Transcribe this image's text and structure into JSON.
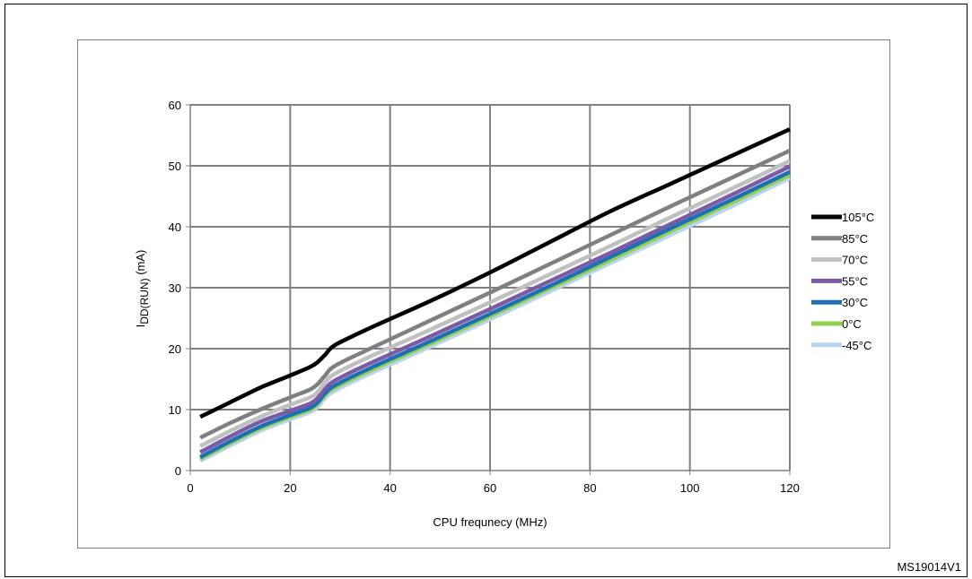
{
  "reference_id": "MS19014V1",
  "chart_data": {
    "type": "line",
    "title": "",
    "xlabel": "CPU frequnecy (MHz)",
    "ylabel_main": "I",
    "ylabel_sub": "DD(RUN)",
    "ylabel_unit": " (mA)",
    "xlim": [
      0,
      120
    ],
    "ylim": [
      0,
      60
    ],
    "xticks": [
      "0",
      "20",
      "40",
      "60",
      "80",
      "100",
      "120"
    ],
    "yticks": [
      "0",
      "10",
      "20",
      "30",
      "40",
      "50",
      "60"
    ],
    "grid": true,
    "legend_position": "right",
    "series": [
      {
        "name": "105°C",
        "color": "#000000",
        "x": [
          2,
          8,
          14,
          20,
          24,
          25.5,
          27,
          29,
          36,
          48,
          60,
          72,
          84,
          96,
          108,
          120
        ],
        "y": [
          8.8,
          11.2,
          13.6,
          15.6,
          17.0,
          17.8,
          19.0,
          20.6,
          23.4,
          27.8,
          32.5,
          37.5,
          42.5,
          47.0,
          51.5,
          56.0
        ]
      },
      {
        "name": "85°C",
        "color": "#808080",
        "x": [
          2,
          8,
          14,
          20,
          24,
          25.5,
          27,
          29,
          36,
          48,
          60,
          72,
          84,
          96,
          108,
          120
        ],
        "y": [
          5.4,
          7.8,
          10.0,
          12.0,
          13.3,
          14.2,
          15.6,
          17.2,
          20.0,
          24.6,
          29.2,
          33.9,
          38.6,
          43.3,
          47.9,
          52.5
        ]
      },
      {
        "name": "70°C",
        "color": "#c0c0c0",
        "x": [
          2,
          8,
          14,
          20,
          24,
          25.5,
          27,
          29,
          36,
          48,
          60,
          72,
          84,
          96,
          108,
          120
        ],
        "y": [
          4.0,
          6.5,
          8.8,
          10.8,
          12.0,
          12.9,
          14.5,
          15.9,
          18.7,
          23.1,
          27.6,
          32.2,
          36.8,
          41.5,
          46.1,
          50.8
        ]
      },
      {
        "name": "55°C",
        "color": "#7c5ba6",
        "x": [
          2,
          8,
          14,
          20,
          24,
          25.5,
          27,
          29,
          36,
          48,
          60,
          72,
          84,
          96,
          108,
          120
        ],
        "y": [
          3.0,
          5.6,
          8.0,
          9.8,
          11.0,
          11.9,
          13.4,
          14.8,
          17.6,
          22.0,
          26.5,
          31.1,
          35.7,
          40.4,
          45.1,
          49.9
        ]
      },
      {
        "name": "30°C",
        "color": "#1f6fb4",
        "x": [
          2,
          8,
          14,
          20,
          24,
          25.5,
          27,
          29,
          36,
          48,
          60,
          72,
          84,
          96,
          108,
          120
        ],
        "y": [
          2.2,
          4.8,
          7.2,
          9.1,
          10.3,
          11.2,
          12.7,
          14.0,
          16.8,
          21.2,
          25.7,
          30.3,
          35.0,
          39.7,
          44.3,
          49.0
        ]
      },
      {
        "name": "0°C",
        "color": "#92d050",
        "x": [
          2,
          8,
          14,
          20,
          24,
          25.5,
          27,
          29,
          36,
          48,
          60,
          72,
          84,
          96,
          108,
          120
        ],
        "y": [
          1.9,
          4.5,
          6.9,
          8.8,
          10.0,
          10.9,
          12.4,
          13.6,
          16.4,
          20.8,
          25.3,
          29.9,
          34.5,
          39.2,
          43.8,
          48.5
        ]
      },
      {
        "name": "-45°C",
        "color": "#b8d4ee",
        "x": [
          2,
          8,
          14,
          20,
          24,
          25.5,
          27,
          29,
          36,
          48,
          60,
          72,
          84,
          96,
          108,
          120
        ],
        "y": [
          1.6,
          4.1,
          6.5,
          8.4,
          9.6,
          10.4,
          11.9,
          13.1,
          15.9,
          20.3,
          24.8,
          29.4,
          34.0,
          38.6,
          43.2,
          48.0
        ]
      }
    ]
  }
}
